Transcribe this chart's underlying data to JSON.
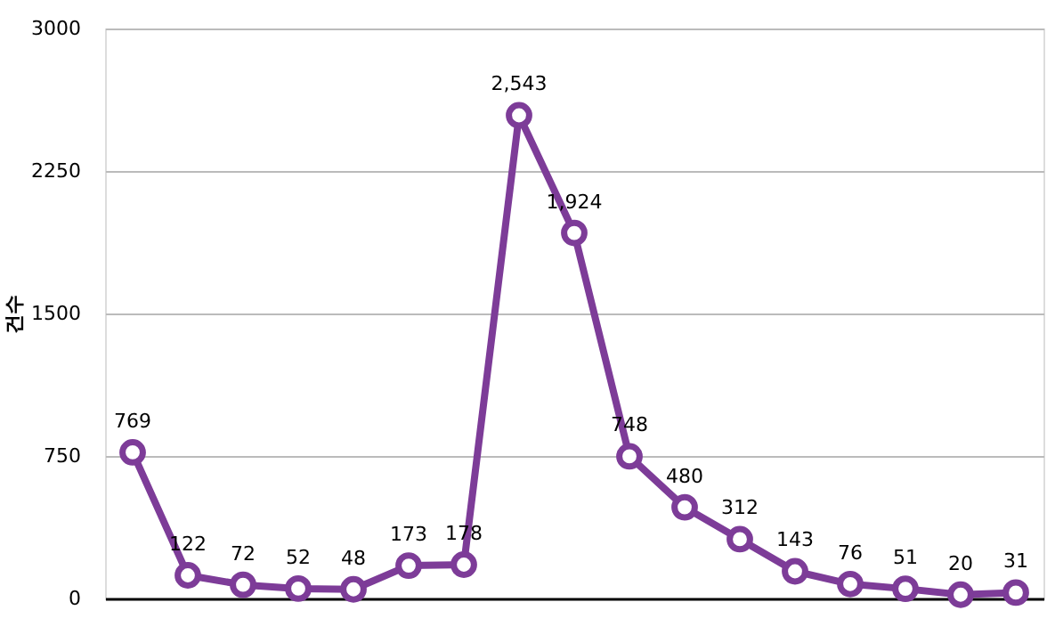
{
  "chart_data": {
    "type": "line",
    "ylabel": "건수",
    "categories": [
      null,
      null,
      null,
      null,
      null,
      null,
      null,
      null,
      null,
      null,
      null,
      null,
      null,
      null,
      null,
      null,
      null
    ],
    "values": [
      769,
      122,
      72,
      52,
      48,
      173,
      178,
      2543,
      1924,
      748,
      480,
      312,
      143,
      76,
      51,
      20,
      31
    ],
    "value_labels": [
      "769",
      "122",
      "72",
      "52",
      "48",
      "173",
      "178",
      "2,543",
      "1,924",
      "748",
      "480",
      "312",
      "143",
      "76",
      "51",
      "20",
      "31"
    ],
    "color": "#7d3c98",
    "marker": "circle",
    "line_style": "solid",
    "ylim": [
      0,
      3000
    ],
    "yticks": [
      0,
      750,
      1500,
      2250,
      3000
    ],
    "grid": "y",
    "tick_labels": "y"
  }
}
